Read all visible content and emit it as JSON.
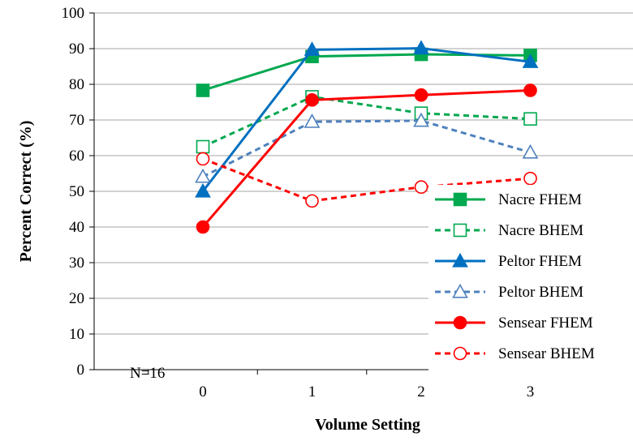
{
  "chart_data": {
    "type": "line",
    "title": "",
    "xlabel": "Volume Setting",
    "ylabel": "Percent Correct (%)",
    "categories": [
      "0",
      "1",
      "2",
      "3"
    ],
    "ylim": [
      0,
      100
    ],
    "yticks": [
      "0",
      "10",
      "20",
      "30",
      "40",
      "50",
      "60",
      "70",
      "80",
      "90",
      "100"
    ],
    "grid": "horizontal",
    "legend_position": "right",
    "annotation": "N=16",
    "series": [
      {
        "name": "Nacre FHEM",
        "values": [
          78.3,
          87.8,
          88.4,
          88.1
        ],
        "color": "#00a84f",
        "dash": "solid",
        "marker": "square",
        "filled": true
      },
      {
        "name": "Nacre BHEM",
        "values": [
          62.5,
          76.5,
          71.9,
          70.3
        ],
        "color": "#00a84f",
        "dash": "dashed",
        "marker": "square",
        "filled": false
      },
      {
        "name": "Peltor FHEM",
        "values": [
          50.0,
          89.7,
          90.1,
          86.3
        ],
        "color": "#0070c0",
        "dash": "solid",
        "marker": "triangle",
        "filled": true
      },
      {
        "name": "Peltor BHEM",
        "values": [
          54.1,
          69.5,
          69.8,
          60.9
        ],
        "color": "#4f81bd",
        "dash": "dashed",
        "marker": "triangle",
        "filled": false
      },
      {
        "name": "Sensear FHEM",
        "values": [
          40.0,
          75.6,
          77.0,
          78.3
        ],
        "color": "#ff0000",
        "dash": "solid",
        "marker": "circle",
        "filled": true
      },
      {
        "name": "Sensear BHEM",
        "values": [
          59.1,
          47.3,
          51.2,
          53.6
        ],
        "color": "#ff0000",
        "dash": "dashed",
        "marker": "circle",
        "filled": false
      }
    ]
  }
}
